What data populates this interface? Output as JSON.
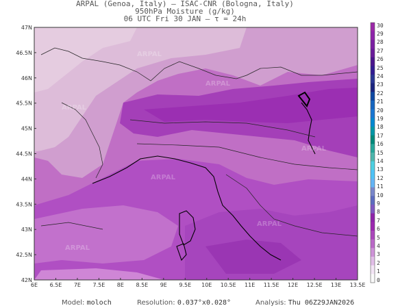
{
  "header": {
    "line1": "ARPAL (Genoa, Italy)  —  ISAC-CNR (Bologna, Italy)",
    "line2": "950hPa Moisture (g/kg)",
    "line3": "06 UTC Fri 30 JAN  —  τ = 24h"
  },
  "map": {
    "lat_labels": [
      "47N",
      "46.5N",
      "46N",
      "45.5N",
      "45N",
      "44.5N",
      "44N",
      "43.5N",
      "43N",
      "42.5N",
      "42N"
    ],
    "lon_labels": [
      "6E",
      "6.5E",
      "7E",
      "7.5E",
      "8E",
      "8.5E",
      "9E",
      "9.5E",
      "10E",
      "10.5E",
      "11E",
      "11.5E",
      "12E",
      "12.5E",
      "13E",
      "13.5E"
    ],
    "watermark": "ARPAL"
  },
  "colorbar": {
    "labels": [
      "30",
      "29",
      "28",
      "27",
      "26",
      "25",
      "24",
      "23",
      "22",
      "21",
      "20",
      "19",
      "18",
      "17",
      "16",
      "15",
      "14",
      "13",
      "12",
      "11",
      "10",
      "9",
      "8",
      "7",
      "6",
      "5",
      "4",
      "3",
      "2",
      "1",
      "0"
    ],
    "colors": [
      "#9c27a8",
      "#8e24aa",
      "#7b1fa2",
      "#6a1b9a",
      "#4a148c",
      "#311b92",
      "#283593",
      "#1a237e",
      "#0d47a1",
      "#1565c0",
      "#1976d2",
      "#0288d1",
      "#0097a7",
      "#00897b",
      "#26a69a",
      "#4db6ac",
      "#4dd0e1",
      "#4fc3f7",
      "#64b5f6",
      "#7986cb",
      "#5c6bc0",
      "#7e57c2",
      "#8e24aa",
      "#9c27b0",
      "#ab47bc",
      "#ba68c8",
      "#ce93d8",
      "#e1bee7",
      "#f3e5f5",
      "#fafafa"
    ]
  },
  "footer": {
    "model_label": "Model:",
    "model_value": "moloch",
    "resolution_label": "Resolution:",
    "resolution_value": "0.037°x0.028°",
    "analysis_label": "Analysis:",
    "analysis_value": "Thu 06Z29JAN2026"
  }
}
